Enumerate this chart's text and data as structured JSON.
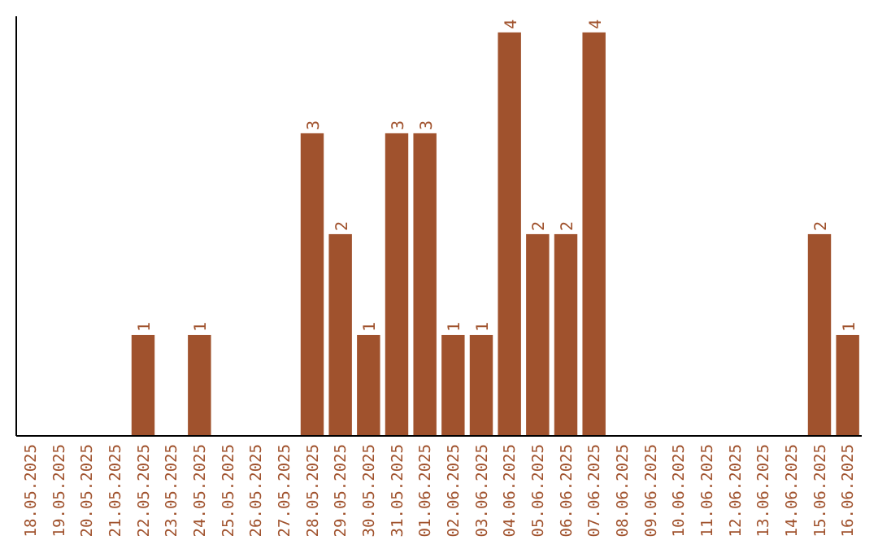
{
  "chart_data": {
    "type": "bar",
    "categories": [
      "18.05.2025",
      "19.05.2025",
      "20.05.2025",
      "21.05.2025",
      "22.05.2025",
      "23.05.2025",
      "24.05.2025",
      "25.05.2025",
      "26.05.2025",
      "27.05.2025",
      "28.05.2025",
      "29.05.2025",
      "30.05.2025",
      "31.05.2025",
      "01.06.2025",
      "02.06.2025",
      "03.06.2025",
      "04.06.2025",
      "05.06.2025",
      "06.06.2025",
      "07.06.2025",
      "08.06.2025",
      "09.06.2025",
      "10.06.2025",
      "11.06.2025",
      "12.06.2025",
      "13.06.2025",
      "14.06.2025",
      "15.06.2025",
      "16.06.2025"
    ],
    "values": [
      0,
      0,
      0,
      0,
      1,
      0,
      1,
      0,
      0,
      0,
      3,
      2,
      1,
      3,
      3,
      1,
      1,
      4,
      2,
      2,
      4,
      0,
      0,
      0,
      0,
      0,
      0,
      0,
      2,
      1
    ],
    "value_labels": [
      null,
      null,
      null,
      null,
      "1",
      null,
      "1",
      null,
      null,
      null,
      "3",
      "2",
      "1",
      "3",
      "3",
      "1",
      "1",
      "4",
      "2",
      "2",
      "4",
      null,
      null,
      null,
      null,
      null,
      null,
      null,
      "2",
      "1"
    ],
    "color": "#a0522d",
    "ylim": [
      0,
      4.16
    ],
    "tick_labels": "x",
    "grid": false
  }
}
